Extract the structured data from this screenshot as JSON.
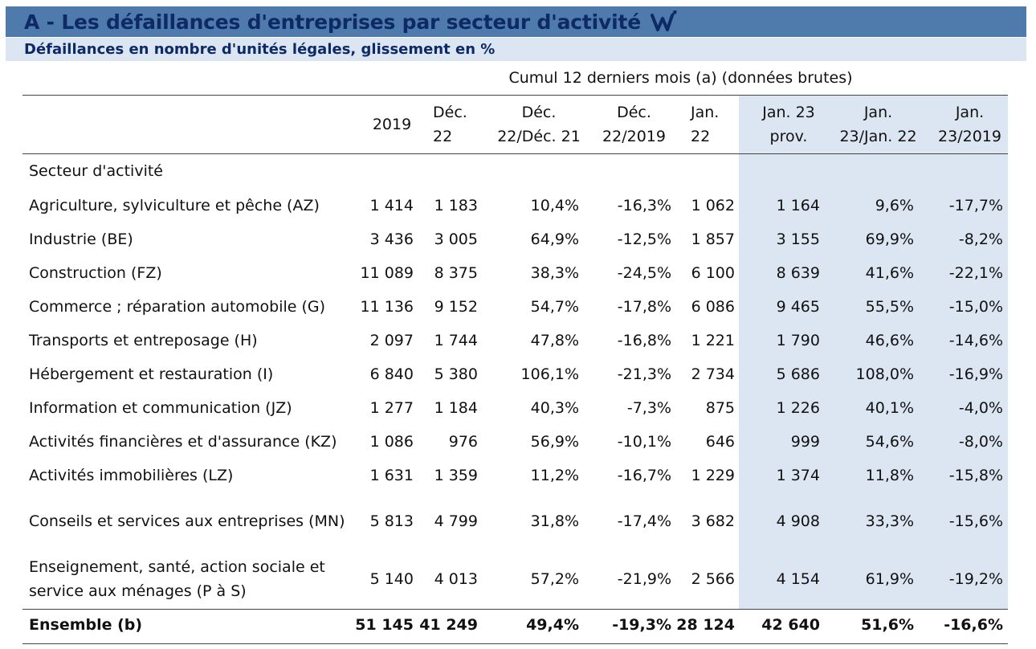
{
  "header": {
    "title": "A - Les défaillances d'entreprises par secteur d'activité",
    "subtitle": "Défaillances en nombre d'unités légales, glissement en %",
    "logo_icon": "w-arrow-logo-icon"
  },
  "table": {
    "super_header": "Cumul 12 derniers mois (a) (données brutes)",
    "columns": [
      "2019",
      "Déc. 22",
      "Déc. 22/Déc. 21",
      "Déc. 22/2019",
      "Jan. 22",
      "Jan. 23 prov.",
      "Jan. 23/Jan. 22",
      "Jan. 23/2019"
    ],
    "section_label": "Secteur d'activité",
    "rows": [
      {
        "label": "Agriculture, sylviculture et pêche (AZ)",
        "values": [
          "1 414",
          "1 183",
          "10,4%",
          "-16,3%",
          "1 062",
          "1 164",
          "9,6%",
          "-17,7%"
        ]
      },
      {
        "label": "Industrie (BE)",
        "values": [
          "3 436",
          "3 005",
          "64,9%",
          "-12,5%",
          "1 857",
          "3 155",
          "69,9%",
          "-8,2%"
        ]
      },
      {
        "label": "Construction (FZ)",
        "values": [
          "11 089",
          "8 375",
          "38,3%",
          "-24,5%",
          "6 100",
          "8 639",
          "41,6%",
          "-22,1%"
        ]
      },
      {
        "label": "Commerce ; réparation automobile (G)",
        "values": [
          "11 136",
          "9 152",
          "54,7%",
          "-17,8%",
          "6 086",
          "9 465",
          "55,5%",
          "-15,0%"
        ]
      },
      {
        "label": "Transports et entreposage (H)",
        "values": [
          "2 097",
          "1 744",
          "47,8%",
          "-16,8%",
          "1 221",
          "1 790",
          "46,6%",
          "-14,6%"
        ]
      },
      {
        "label": "Hébergement et restauration (I)",
        "values": [
          "6 840",
          "5 380",
          "106,1%",
          "-21,3%",
          "2 734",
          "5 686",
          "108,0%",
          "-16,9%"
        ]
      },
      {
        "label": "Information et communication (JZ)",
        "values": [
          "1 277",
          "1 184",
          "40,3%",
          "-7,3%",
          "875",
          "1 226",
          "40,1%",
          "-4,0%"
        ]
      },
      {
        "label": "Activités financières et d'assurance (KZ)",
        "values": [
          "1 086",
          "976",
          "56,9%",
          "-10,1%",
          "646",
          "999",
          "54,6%",
          "-8,0%"
        ]
      },
      {
        "label": "Activités immobilières (LZ)",
        "values": [
          "1 631",
          "1 359",
          "11,2%",
          "-16,7%",
          "1 229",
          "1 374",
          "11,8%",
          "-15,8%"
        ]
      },
      {
        "label": "Conseils et services aux entreprises (MN)",
        "values": [
          "5 813",
          "4 799",
          "31,8%",
          "-17,4%",
          "3 682",
          "4 908",
          "33,3%",
          "-15,6%"
        ]
      },
      {
        "label": "Enseignement, santé, action sociale et service aux ménages (P à S)",
        "values": [
          "5 140",
          "4 013",
          "57,2%",
          "-21,9%",
          "2 566",
          "4 154",
          "61,9%",
          "-19,2%"
        ]
      }
    ],
    "total": {
      "label": "Ensemble (b)",
      "values": [
        "51 145",
        "41 249",
        "49,4%",
        "-19,3%",
        "28 124",
        "42 640",
        "51,6%",
        "-16,6%"
      ]
    }
  },
  "colors": {
    "title_bg": "#4e7bab",
    "title_text": "#0e2a66",
    "subtitle_bg": "#dce6f2",
    "highlight_band": "#dce6f2"
  }
}
